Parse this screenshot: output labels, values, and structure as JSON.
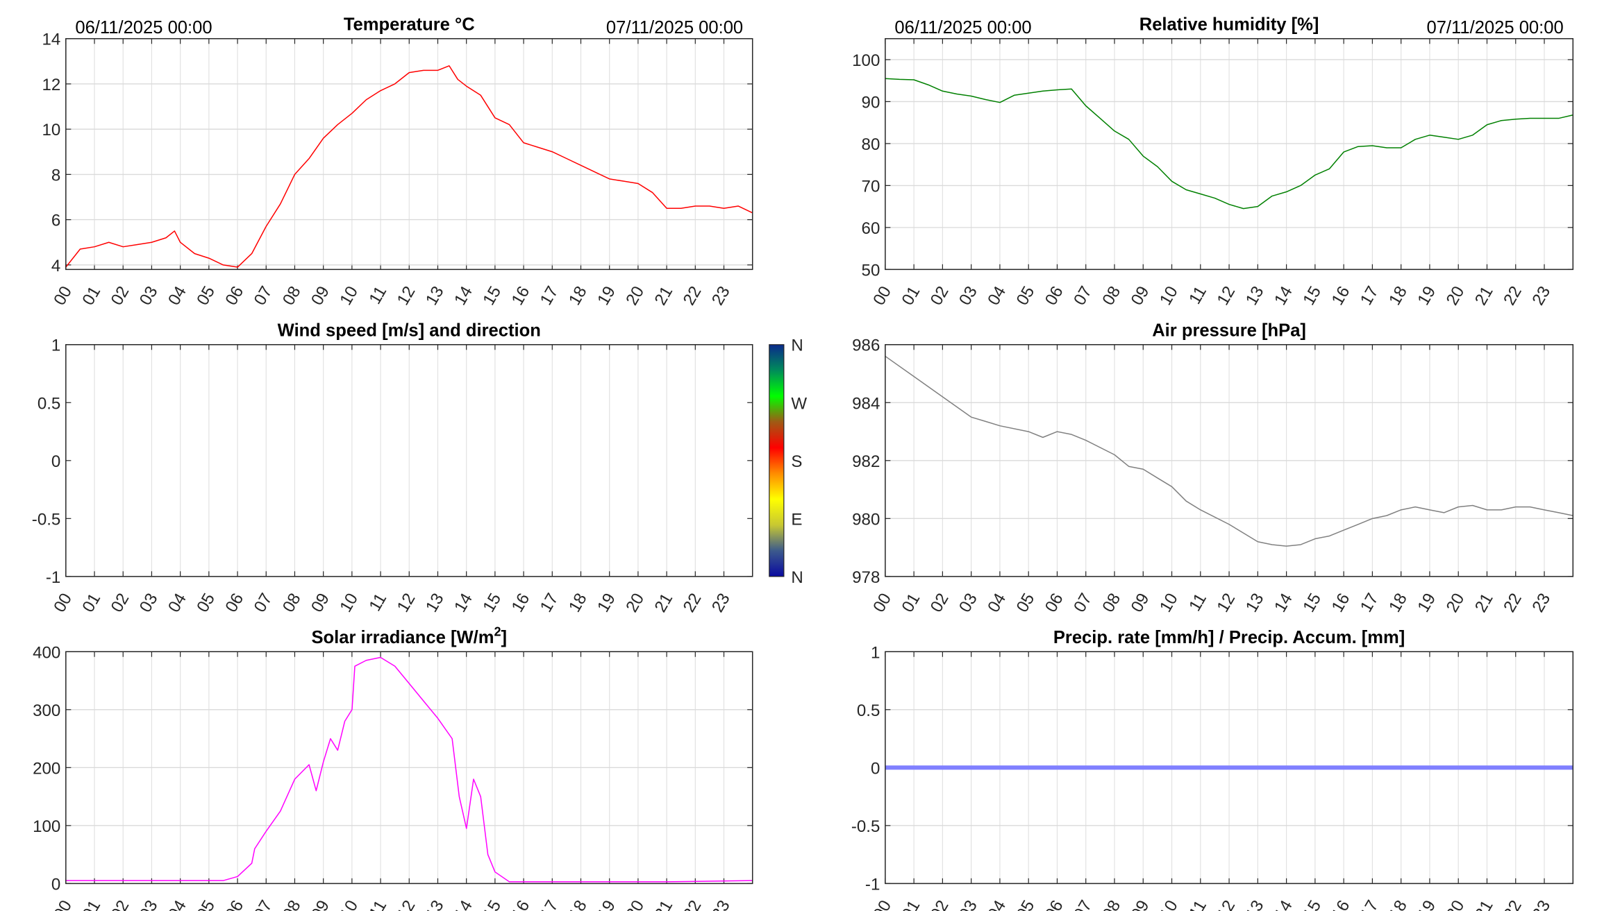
{
  "date_start": "06/11/2025 00:00",
  "date_end": "07/11/2025 00:00",
  "hour_labels": [
    "00",
    "01",
    "02",
    "03",
    "04",
    "05",
    "06",
    "07",
    "08",
    "09",
    "10",
    "11",
    "12",
    "13",
    "14",
    "15",
    "16",
    "17",
    "18",
    "19",
    "20",
    "21",
    "22",
    "23"
  ],
  "chart_data": [
    {
      "type": "line",
      "title": "Temperature °C",
      "color": "#ff0000",
      "xlim": [
        0,
        24
      ],
      "ylim": [
        3.8,
        14
      ],
      "yticks": [
        4,
        6,
        8,
        10,
        12,
        14
      ],
      "ytick_labels": [
        "4",
        "6",
        "8",
        "10",
        "12",
        "14"
      ],
      "grid": true,
      "x": [
        0,
        0.5,
        1,
        1.5,
        2,
        2.5,
        3,
        3.5,
        3.8,
        4,
        4.5,
        5,
        5.5,
        6,
        6.5,
        7,
        7.5,
        8,
        8.5,
        9,
        9.5,
        10,
        10.5,
        11,
        11.5,
        12,
        12.5,
        13,
        13.4,
        13.7,
        14,
        14.5,
        15,
        15.5,
        16,
        16.5,
        17,
        17.5,
        18,
        18.5,
        19,
        19.5,
        20,
        20.5,
        21,
        21.5,
        22,
        22.5,
        23,
        23.5,
        24
      ],
      "y": [
        3.9,
        4.7,
        4.8,
        5.0,
        4.8,
        4.9,
        5.0,
        5.2,
        5.5,
        5.0,
        4.5,
        4.3,
        4.0,
        3.9,
        4.5,
        5.7,
        6.7,
        8.0,
        8.7,
        9.6,
        10.2,
        10.7,
        11.3,
        11.7,
        12.0,
        12.5,
        12.6,
        12.6,
        12.8,
        12.2,
        11.9,
        11.5,
        10.5,
        10.2,
        9.4,
        9.2,
        9.0,
        8.7,
        8.4,
        8.1,
        7.8,
        7.7,
        7.6,
        7.2,
        6.5,
        6.5,
        6.6,
        6.6,
        6.5,
        6.6,
        6.3
      ]
    },
    {
      "type": "line",
      "title": "Relative humidity [%]",
      "color": "#008000",
      "xlim": [
        0,
        24
      ],
      "ylim": [
        50,
        105
      ],
      "yticks": [
        50,
        60,
        70,
        80,
        90,
        100
      ],
      "ytick_labels": [
        "50",
        "60",
        "70",
        "80",
        "90",
        "100"
      ],
      "grid": true,
      "x": [
        0,
        0.5,
        1,
        1.5,
        2,
        2.5,
        3,
        3.5,
        4,
        4.5,
        5,
        5.5,
        6,
        6.5,
        7,
        7.5,
        8,
        8.5,
        9,
        9.5,
        10,
        10.5,
        11,
        11.5,
        12,
        12.5,
        13,
        13.5,
        14,
        14.5,
        15,
        15.5,
        16,
        16.5,
        17,
        17.5,
        18,
        18.5,
        19,
        19.5,
        20,
        20.5,
        21,
        21.5,
        22,
        22.5,
        23,
        23.5,
        24
      ],
      "y": [
        95.5,
        95.3,
        95.2,
        94,
        92.5,
        91.8,
        91.3,
        90.5,
        89.8,
        91.5,
        92,
        92.5,
        92.8,
        93,
        89,
        86,
        83,
        81,
        77,
        74.5,
        71,
        69,
        68,
        67,
        65.5,
        64.5,
        65,
        67.5,
        68.5,
        70,
        72.5,
        74,
        78,
        79.3,
        79.5,
        79,
        79,
        81,
        82,
        81.5,
        81,
        82,
        84.5,
        85.5,
        85.8,
        86,
        86,
        86,
        86.8
      ]
    },
    {
      "type": "line",
      "title": "Wind speed [m/s] and direction",
      "color": "#000000",
      "xlim": [
        0,
        24
      ],
      "ylim": [
        -1,
        1
      ],
      "yticks": [
        -1,
        -0.5,
        0,
        0.5,
        1
      ],
      "ytick_labels": [
        "-1",
        "-0.5",
        "0",
        "0.5",
        "1"
      ],
      "grid": false,
      "x": [],
      "y": [],
      "colorbar": {
        "labels": [
          "N",
          "W",
          "S",
          "E",
          "N"
        ],
        "colors": [
          "#0a0aa0",
          "#3c5a8c",
          "#c8c832",
          "#ffff00",
          "#ff8c00",
          "#ff0000",
          "#a05a14",
          "#00ff00",
          "#008c5a",
          "#0a2a8c"
        ]
      }
    },
    {
      "type": "line",
      "title": "Air pressure [hPa]",
      "color": "#808080",
      "xlim": [
        0,
        24
      ],
      "ylim": [
        978,
        986
      ],
      "yticks": [
        978,
        980,
        982,
        984,
        986
      ],
      "ytick_labels": [
        "978",
        "980",
        "982",
        "984",
        "986"
      ],
      "grid": true,
      "x": [
        0,
        1,
        2,
        3,
        3.5,
        4,
        5,
        5.5,
        6,
        6.5,
        7,
        8,
        8.5,
        9,
        9.5,
        10,
        10.5,
        11,
        12,
        12.5,
        13,
        13.5,
        14,
        14.5,
        15,
        15.5,
        16,
        16.5,
        17,
        17.5,
        18,
        18.5,
        19,
        19.5,
        20,
        20.5,
        21,
        21.5,
        22,
        22.5,
        23,
        23.5,
        24
      ],
      "y": [
        985.6,
        984.9,
        984.2,
        983.5,
        983.35,
        983.2,
        983.0,
        982.8,
        983.0,
        982.9,
        982.7,
        982.2,
        981.8,
        981.7,
        981.4,
        981.1,
        980.6,
        980.3,
        979.8,
        979.5,
        979.2,
        979.1,
        979.05,
        979.1,
        979.3,
        979.4,
        979.6,
        979.8,
        980.0,
        980.1,
        980.3,
        980.4,
        980.3,
        980.2,
        980.4,
        980.45,
        980.3,
        980.3,
        980.4,
        980.4,
        980.3,
        980.2,
        980.1
      ]
    },
    {
      "type": "line",
      "title": "Solar irradiance [W/m",
      "title_sup": "2",
      "title_end": "]",
      "color": "#ff00ff",
      "xlim": [
        0,
        24
      ],
      "ylim": [
        0,
        400
      ],
      "yticks": [
        0,
        100,
        200,
        300,
        400
      ],
      "ytick_labels": [
        "0",
        "100",
        "200",
        "300",
        "400"
      ],
      "grid": true,
      "x": [
        0,
        5.5,
        6,
        6.5,
        6.6,
        7,
        7.5,
        8,
        8.5,
        8.75,
        9,
        9.25,
        9.5,
        9.75,
        10,
        10.1,
        10.5,
        11,
        11.5,
        12,
        12.5,
        13,
        13.5,
        13.75,
        14,
        14.25,
        14.5,
        14.75,
        15,
        15.5,
        21,
        24
      ],
      "y": [
        5,
        5,
        12,
        35,
        60,
        90,
        125,
        180,
        205,
        160,
        210,
        250,
        230,
        280,
        300,
        375,
        385,
        390,
        375,
        345,
        315,
        285,
        250,
        150,
        95,
        180,
        150,
        50,
        20,
        3,
        3,
        5
      ]
    },
    {
      "type": "line",
      "title": "Precip. rate [mm/h] / Precip. Accum. [mm]",
      "color": "#8080ff",
      "xlim": [
        0,
        24
      ],
      "ylim": [
        -1,
        1
      ],
      "yticks": [
        -1,
        -0.5,
        0,
        0.5,
        1
      ],
      "ytick_labels": [
        "-1",
        "-0.5",
        "0",
        "0.5",
        "1"
      ],
      "grid": true,
      "x": [
        0,
        24
      ],
      "y": [
        0,
        0
      ]
    }
  ]
}
